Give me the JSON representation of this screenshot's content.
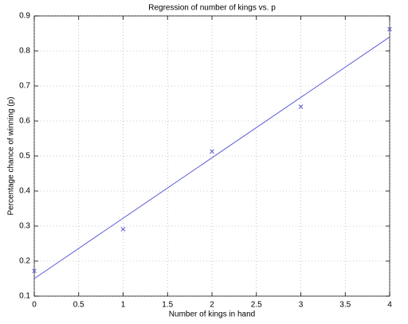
{
  "chart_data": {
    "type": "scatter",
    "title": "Regression of number of kings vs. p",
    "x_label": "Number of kings in hand",
    "y_label": "Percentage chance of winning (p)",
    "series": [
      {
        "color": "#5b5bd6",
        "marker": "x",
        "x": [
          0,
          1,
          2,
          3,
          4
        ],
        "values": [
          0.172,
          0.291,
          0.513,
          0.641,
          0.862
        ]
      },
      {
        "color": "#5b5bd6",
        "marker": "line",
        "x": [
          0,
          4
        ],
        "values": [
          0.15,
          0.84
        ]
      }
    ],
    "xlim": [
      0,
      4
    ],
    "xticks": [
      0,
      0.5,
      1,
      1.5,
      2,
      2.5,
      3,
      3.5,
      4
    ],
    "ylim": [
      0.1,
      0.9
    ],
    "yticks": [
      0.1,
      0.2,
      0.3,
      0.4,
      0.5,
      0.6,
      0.7,
      0.8,
      0.9
    ],
    "grid": true
  }
}
